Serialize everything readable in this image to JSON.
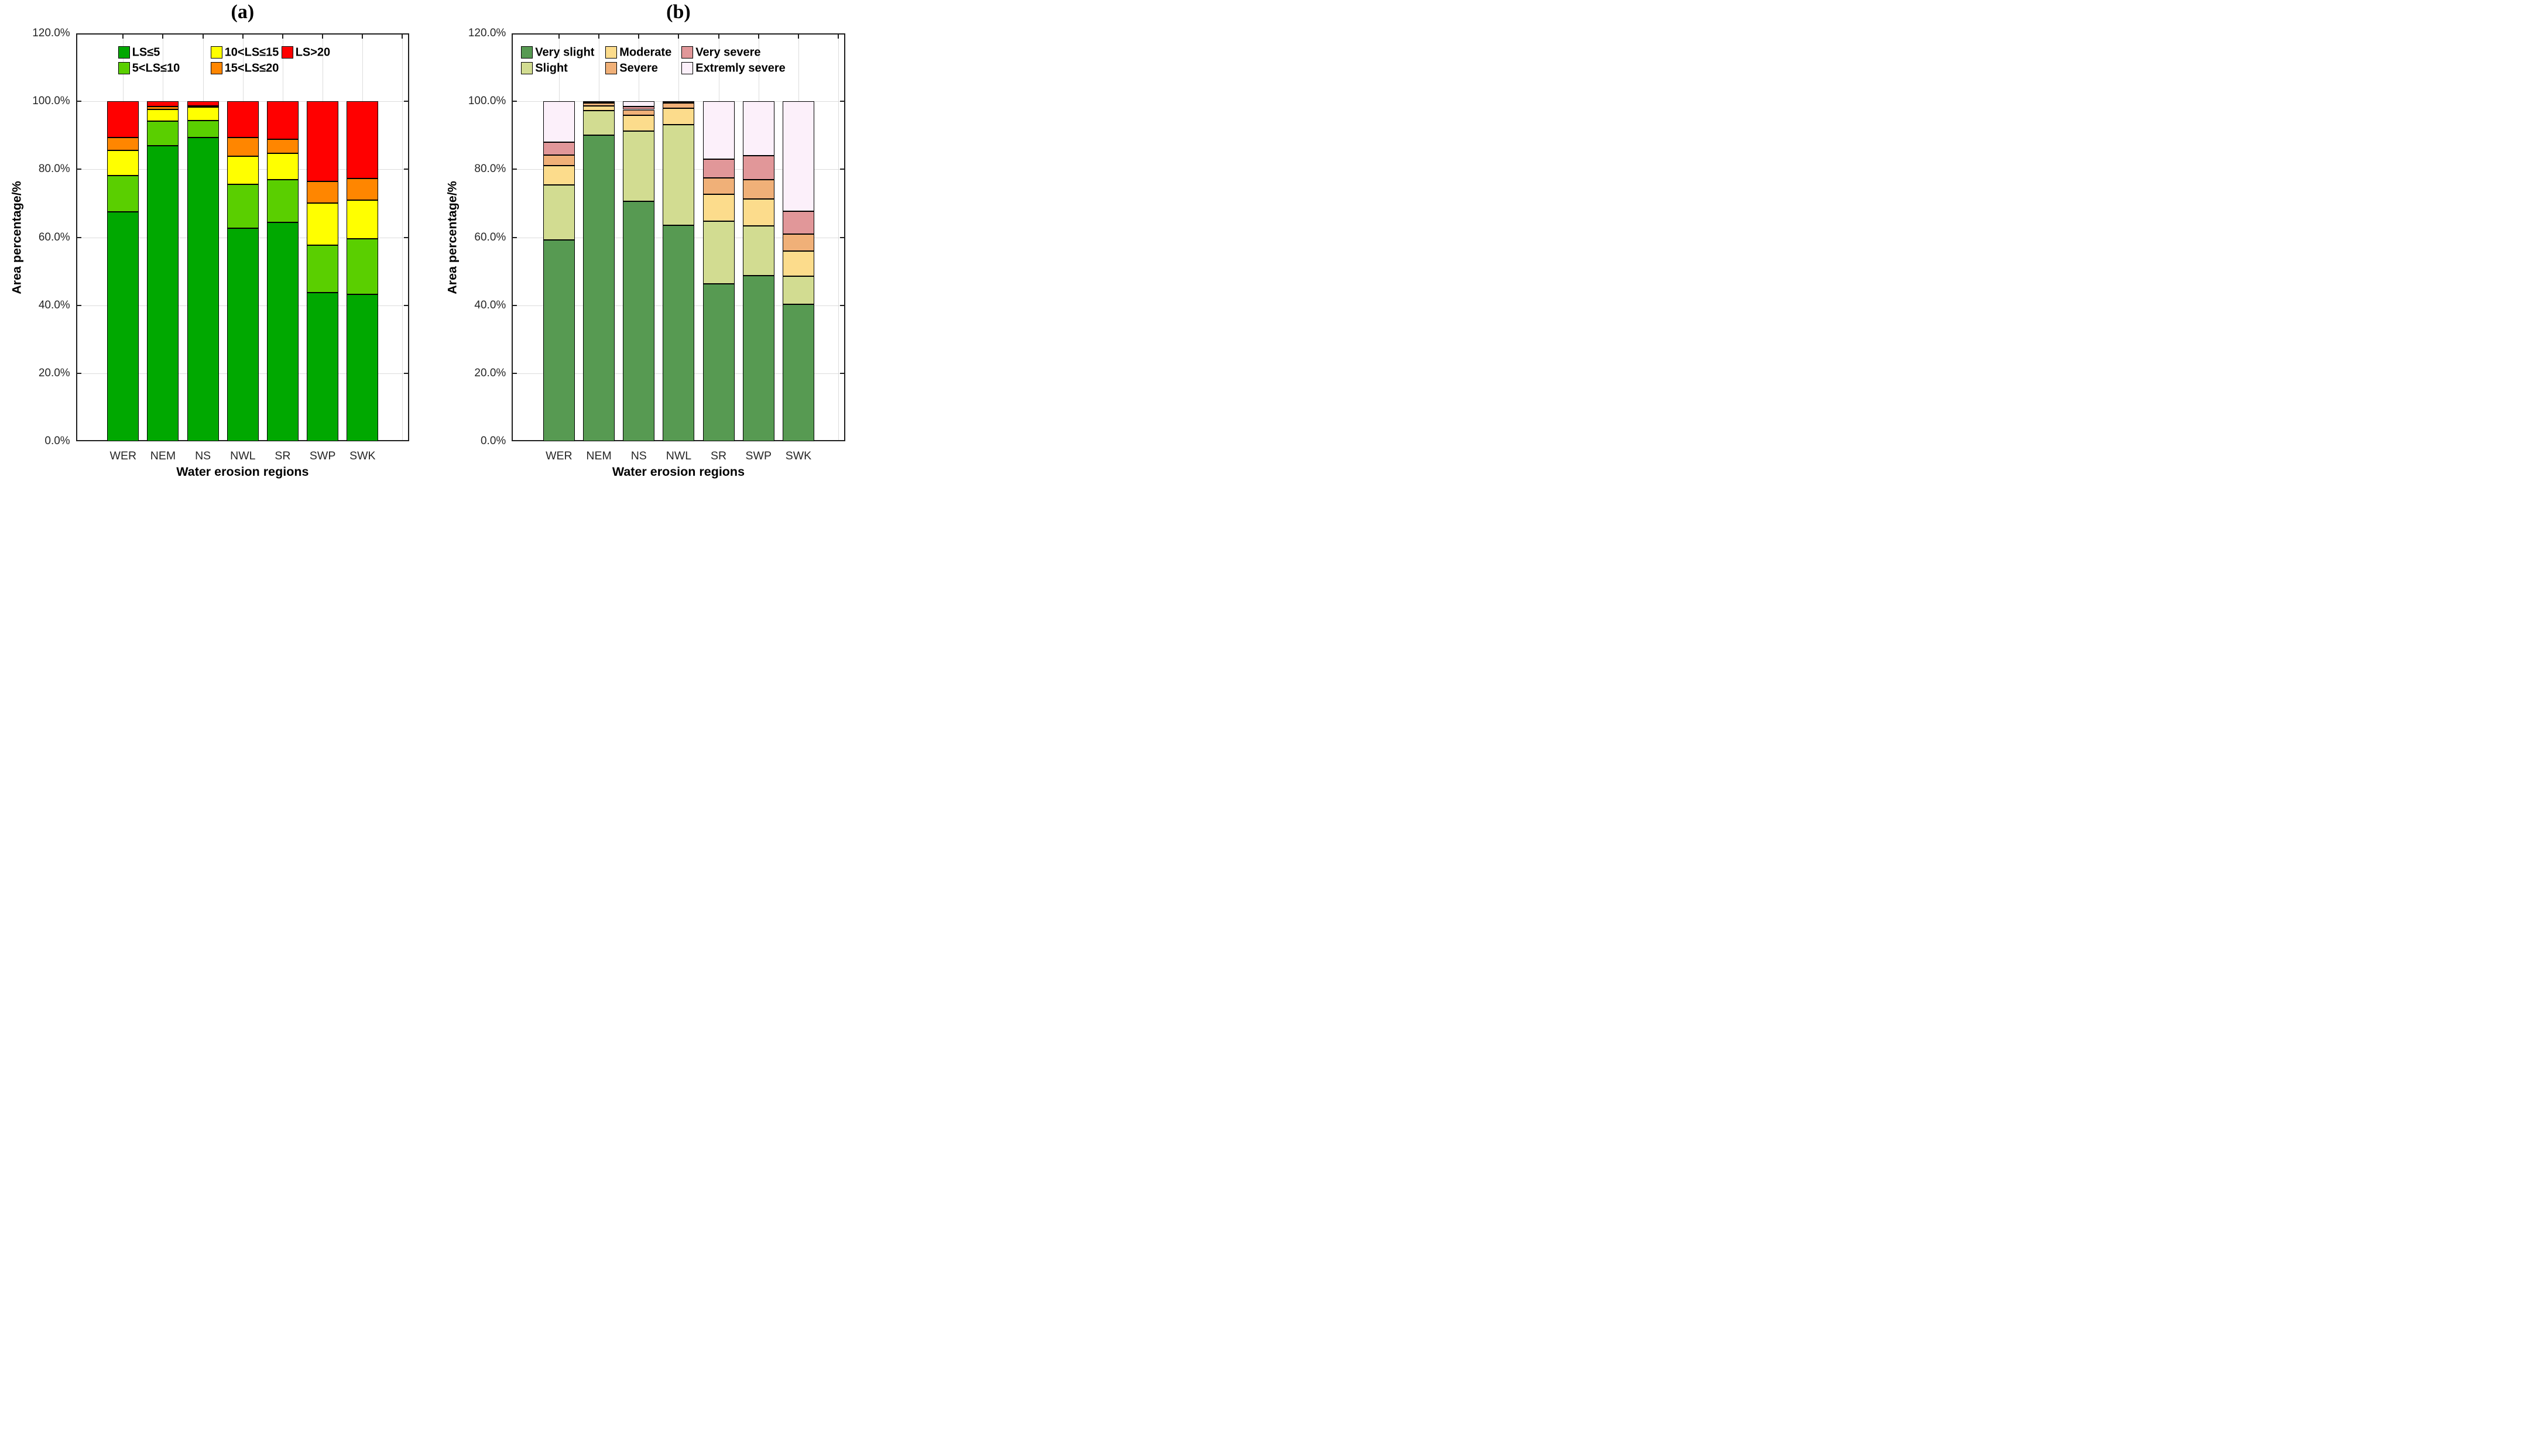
{
  "chart_data": [
    {
      "id": "a",
      "type": "bar",
      "stacked": true,
      "title": "(a)",
      "xlabel": "Water erosion regions",
      "ylabel": "Area percentage/%",
      "ylim": [
        0,
        120
      ],
      "grid": true,
      "legend_position": "top-inside",
      "ytick_labels": [
        "0.0%",
        "20.0%",
        "40.0%",
        "60.0%",
        "80.0%",
        "100.0%",
        "120.0%"
      ],
      "categories": [
        "WER",
        "NEM",
        "NS",
        "NWL",
        "SR",
        "SWP",
        "SWK"
      ],
      "series": [
        {
          "name": "LS≤5",
          "color": "#00A800",
          "values": [
            67.5,
            86.9,
            89.4,
            62.6,
            64.4,
            43.7,
            43.3
          ]
        },
        {
          "name": "5<LS≤10",
          "color": "#5ACF00",
          "values": [
            10.7,
            7.2,
            4.9,
            13.0,
            12.6,
            14.0,
            16.2
          ]
        },
        {
          "name": "10<LS≤15",
          "color": "#FFFF00",
          "values": [
            7.3,
            3.5,
            4.0,
            8.2,
            7.6,
            12.4,
            11.5
          ]
        },
        {
          "name": "15<LS≤20",
          "color": "#FF8600",
          "values": [
            3.8,
            0.8,
            0.4,
            5.5,
            4.2,
            6.3,
            6.3
          ]
        },
        {
          "name": "LS>20",
          "color": "#FF0000",
          "values": [
            10.7,
            1.6,
            1.3,
            10.7,
            11.2,
            23.6,
            22.7
          ]
        }
      ]
    },
    {
      "id": "b",
      "type": "bar",
      "stacked": true,
      "title": "(b)",
      "xlabel": "Water erosion regions",
      "ylabel": "Area percentage/%",
      "ylim": [
        0,
        120
      ],
      "grid": true,
      "legend_position": "top-inside",
      "ytick_labels": [
        "0.0%",
        "20.0%",
        "40.0%",
        "60.0%",
        "80.0%",
        "100.0%",
        "120.0%"
      ],
      "categories": [
        "WER",
        "NEM",
        "NS",
        "NWL",
        "SR",
        "SWP",
        "SWK"
      ],
      "series": [
        {
          "name": "Very slight",
          "color": "#579A52",
          "values": [
            59.3,
            90.0,
            70.5,
            63.6,
            46.3,
            48.8,
            40.3
          ]
        },
        {
          "name": "Slight",
          "color": "#D2DC91",
          "values": [
            16.1,
            7.2,
            20.7,
            29.5,
            18.5,
            14.6,
            8.3
          ]
        },
        {
          "name": "Moderate",
          "color": "#FCDC8C",
          "values": [
            5.7,
            1.4,
            4.6,
            4.9,
            7.9,
            7.9,
            7.3
          ]
        },
        {
          "name": "Severe",
          "color": "#F0B078",
          "values": [
            3.1,
            0.8,
            1.7,
            1.5,
            4.8,
            5.6,
            5.1
          ]
        },
        {
          "name": "Very severe",
          "color": "#E19799",
          "values": [
            3.8,
            0.3,
            1.0,
            0.3,
            5.5,
            7.1,
            6.6
          ]
        },
        {
          "name": "Extremly severe",
          "color": "#FCF0FA",
          "values": [
            12.0,
            0.3,
            1.5,
            0.2,
            17.0,
            16.0,
            32.4
          ]
        }
      ]
    }
  ]
}
